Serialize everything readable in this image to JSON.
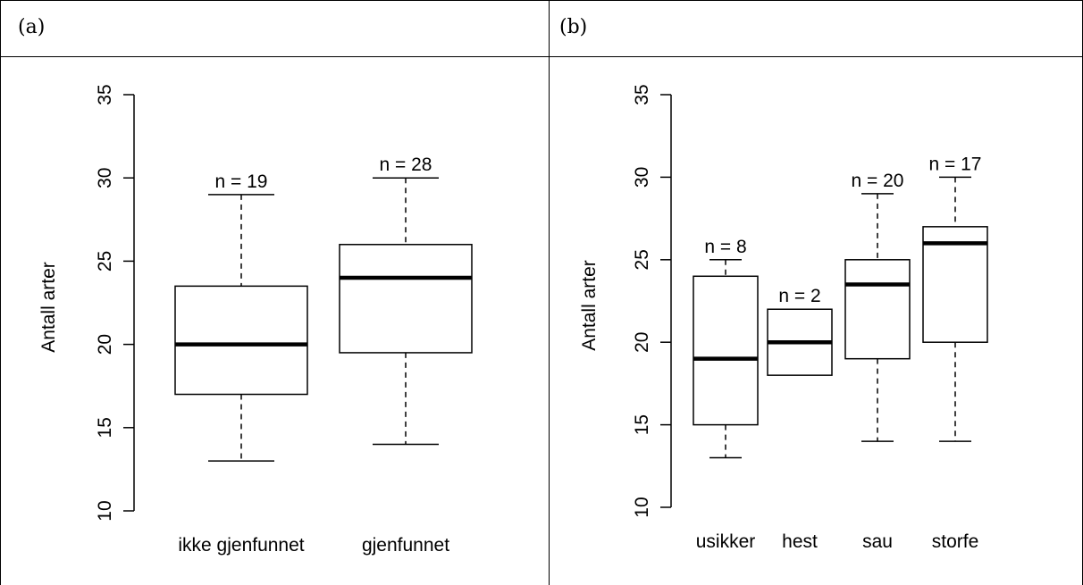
{
  "panels": [
    {
      "label": "(a)"
    },
    {
      "label": "(b)"
    }
  ],
  "chart_data": [
    {
      "type": "box",
      "ylabel": "Antall arter",
      "ylim": [
        10,
        35
      ],
      "yticks": [
        10,
        15,
        20,
        25,
        30,
        35
      ],
      "categories": [
        "ikke gjenfunnet",
        "gjenfunnet"
      ],
      "boxes": [
        {
          "min": 13,
          "q1": 17,
          "median": 20,
          "q3": 23.5,
          "max": 29,
          "n_label": "n = 19"
        },
        {
          "min": 14,
          "q1": 19.5,
          "median": 24,
          "q3": 26,
          "max": 30,
          "n_label": "n = 28"
        }
      ]
    },
    {
      "type": "box",
      "ylabel": "Antall arter",
      "ylim": [
        10,
        35
      ],
      "yticks": [
        10,
        15,
        20,
        25,
        30,
        35
      ],
      "categories": [
        "usikker",
        "hest",
        "sau",
        "storfe"
      ],
      "boxes": [
        {
          "min": 13,
          "q1": 15,
          "median": 19,
          "q3": 24,
          "max": 25,
          "n_label": "n = 8"
        },
        {
          "min": 18,
          "q1": 18,
          "median": 20,
          "q3": 22,
          "max": 22,
          "n_label": "n = 2"
        },
        {
          "min": 14,
          "q1": 19,
          "median": 23.5,
          "q3": 25,
          "max": 29,
          "n_label": "n = 20"
        },
        {
          "min": 14,
          "q1": 20,
          "median": 26,
          "q3": 27,
          "max": 30,
          "n_label": "n = 17"
        }
      ]
    }
  ]
}
